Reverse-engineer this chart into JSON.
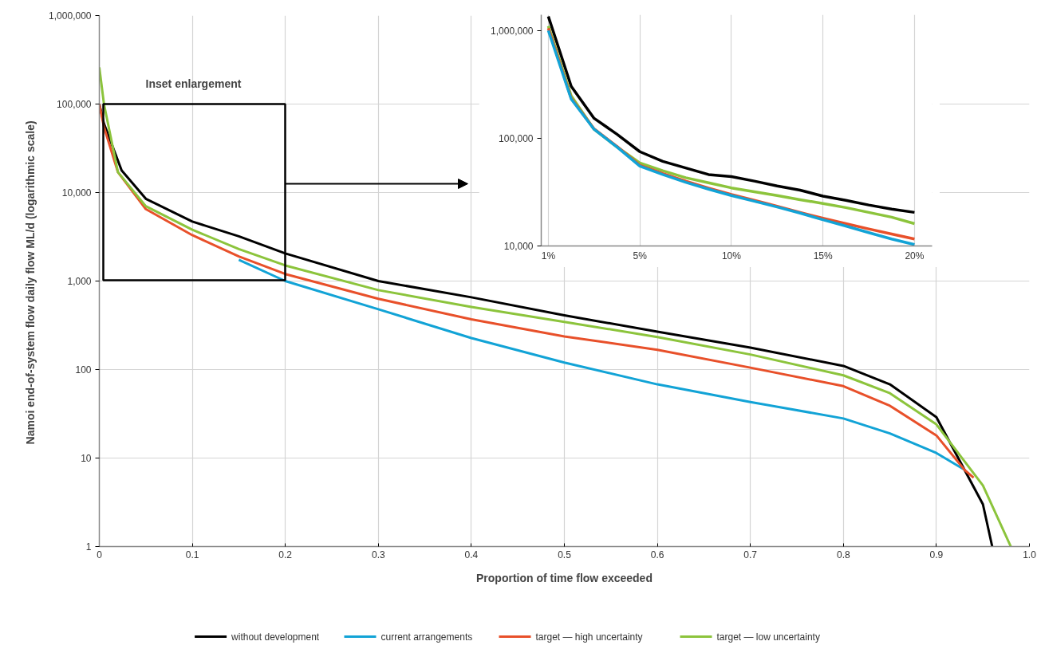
{
  "chart_data": [
    {
      "type": "line",
      "xlabel": "Proportion of time flow exceeded",
      "ylabel": "Namoi end-of-system flow daily flow  ML/d (logarithmic scale)",
      "xlim": [
        0,
        1
      ],
      "ylim": [
        1,
        1000000
      ],
      "log": "y",
      "grid": true,
      "legend": "bottom",
      "xticks": [
        0,
        0.1,
        0.2,
        0.3,
        0.4,
        0.5,
        0.6,
        0.7,
        0.8,
        0.9,
        {
          "value": 1,
          "label": "1.0"
        }
      ],
      "yticks": [
        1,
        10,
        100,
        {
          "value": 1000,
          "label": "1,000"
        },
        {
          "value": 10000,
          "label": "10,000"
        },
        {
          "value": 100000,
          "label": "100,000"
        },
        {
          "value": 1000000,
          "label": "1,000,000"
        }
      ],
      "annotations": [
        "Inset enlargement"
      ],
      "series": [
        {
          "name": "without development",
          "color": "#000000",
          "x": [
            0,
            0.005,
            0.024,
            0.05,
            0.1,
            0.15,
            0.2,
            0.3,
            0.4,
            0.5,
            0.6,
            0.7,
            0.8,
            0.85,
            0.9,
            0.95,
            0.96
          ],
          "values": [
            100000,
            60000,
            17800,
            8500,
            4700,
            3200,
            2050,
            1000,
            655,
            410,
            268,
            177,
            110,
            68,
            29,
            3,
            1
          ]
        },
        {
          "name": "current arrangements",
          "color": "#12a3d6",
          "x": [
            0.15,
            0.2,
            0.3,
            0.4,
            0.5,
            0.6,
            0.7,
            0.8,
            0.85,
            0.9,
            0.93
          ],
          "values": [
            1740,
            1000,
            480,
            227,
            120,
            68,
            43,
            28,
            19,
            11.4,
            7.4
          ]
        },
        {
          "name": "target — high uncertainty",
          "color": "#e8502a",
          "x": [
            0,
            0.005,
            0.02,
            0.05,
            0.1,
            0.15,
            0.2,
            0.3,
            0.4,
            0.5,
            0.6,
            0.7,
            0.8,
            0.85,
            0.9,
            0.93,
            0.94
          ],
          "values": [
            100000,
            55000,
            17000,
            6500,
            3300,
            1900,
            1200,
            630,
            370,
            237,
            167,
            105,
            65,
            39,
            18,
            7.4,
            6
          ]
        },
        {
          "name": "target — low uncertainty",
          "color": "#8cc43c",
          "x": [
            0,
            0.005,
            0.02,
            0.05,
            0.1,
            0.15,
            0.2,
            0.3,
            0.4,
            0.5,
            0.6,
            0.7,
            0.8,
            0.85,
            0.9,
            0.95,
            0.98
          ],
          "values": [
            260000,
            100000,
            17000,
            7000,
            3800,
            2300,
            1500,
            790,
            510,
            346,
            233,
            148,
            86,
            54,
            24,
            4.9,
            1
          ]
        }
      ]
    },
    {
      "type": "line",
      "log": "y",
      "grid": "x",
      "ylim": [
        10000,
        1400000
      ],
      "categories": [
        "1%",
        null,
        null,
        null,
        "5%",
        null,
        null,
        null,
        "10%",
        null,
        null,
        null,
        "15%",
        null,
        null,
        null,
        "20%"
      ],
      "yticks": [
        {
          "value": 10000,
          "label": "10,000"
        },
        {
          "value": 100000,
          "label": "100,000"
        },
        {
          "value": 1000000,
          "label": "1,000,000"
        }
      ],
      "series": [
        {
          "color": "#000000",
          "values": [
            1350000,
            303000,
            153000,
            109000,
            75000,
            61000,
            53000,
            46000,
            44000,
            40000,
            36000,
            33000,
            29000,
            26500,
            24000,
            22000,
            20500
          ]
        },
        {
          "color": "#8cc43c",
          "values": [
            1100000,
            247000,
            121000,
            83000,
            59000,
            50000,
            43000,
            38600,
            34600,
            31900,
            29400,
            26900,
            24800,
            22700,
            20500,
            18500,
            16100
          ]
        },
        {
          "color": "#e8502a",
          "values": [
            1050000,
            235000,
            122000,
            84000,
            56000,
            47000,
            40000,
            34500,
            30000,
            26500,
            23400,
            20500,
            18100,
            16100,
            14400,
            12900,
            11600
          ]
        },
        {
          "color": "#12a3d6",
          "values": [
            1000000,
            231000,
            121000,
            83000,
            55000,
            46000,
            39000,
            33700,
            29400,
            26000,
            23000,
            20200,
            17500,
            15300,
            13300,
            11600,
            10300
          ]
        }
      ]
    }
  ]
}
